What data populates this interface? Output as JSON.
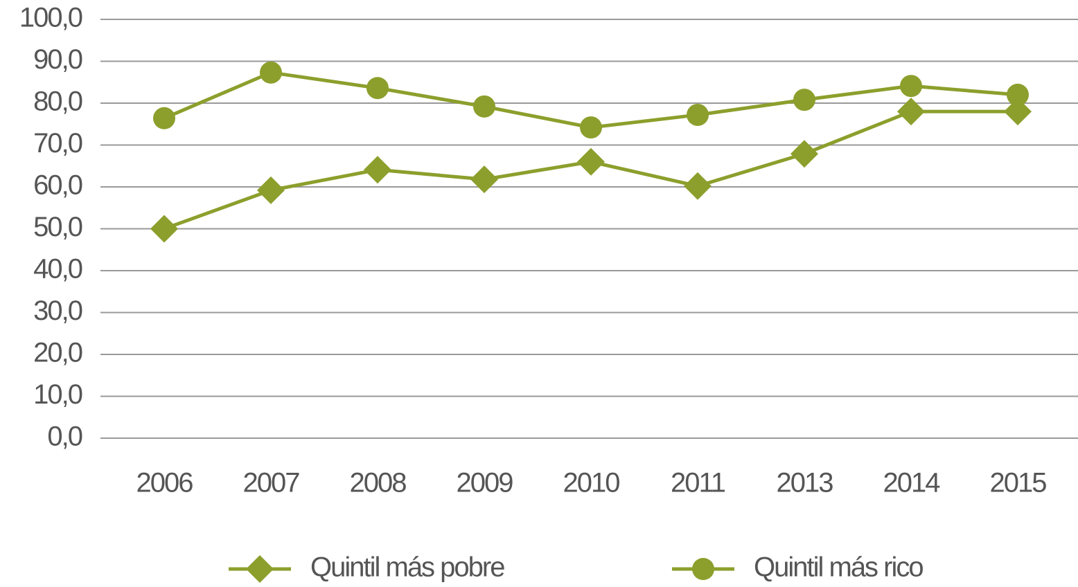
{
  "chart_data": {
    "type": "line",
    "categories": [
      "2006",
      "2007",
      "2008",
      "2009",
      "2010",
      "2011",
      "2013",
      "2014",
      "2015"
    ],
    "series": [
      {
        "name": "Quintil más pobre",
        "color": "#8c9f2c",
        "marker": "diamond",
        "values": [
          50.0,
          59.2,
          64.1,
          61.8,
          66.0,
          60.2,
          67.9,
          78.0,
          78.0
        ]
      },
      {
        "name": "Quintil más rico",
        "color": "#8c9f2c",
        "marker": "circle",
        "values": [
          76.4,
          87.3,
          83.6,
          79.2,
          74.2,
          77.2,
          80.8,
          84.1,
          82.0
        ]
      }
    ],
    "ylim": [
      0,
      100
    ],
    "yticks": [
      {
        "value": 0,
        "label": "0,0"
      },
      {
        "value": 10,
        "label": "10,0"
      },
      {
        "value": 20,
        "label": "20,0"
      },
      {
        "value": 30,
        "label": "30,0"
      },
      {
        "value": 40,
        "label": "40,0"
      },
      {
        "value": 50,
        "label": "50,0"
      },
      {
        "value": 60,
        "label": "60,0"
      },
      {
        "value": 70,
        "label": "70,0"
      },
      {
        "value": 80,
        "label": "80,0"
      },
      {
        "value": 90,
        "label": "90,0"
      },
      {
        "value": 100,
        "label": "100,0"
      }
    ],
    "grid": true,
    "legend": "bottom"
  }
}
